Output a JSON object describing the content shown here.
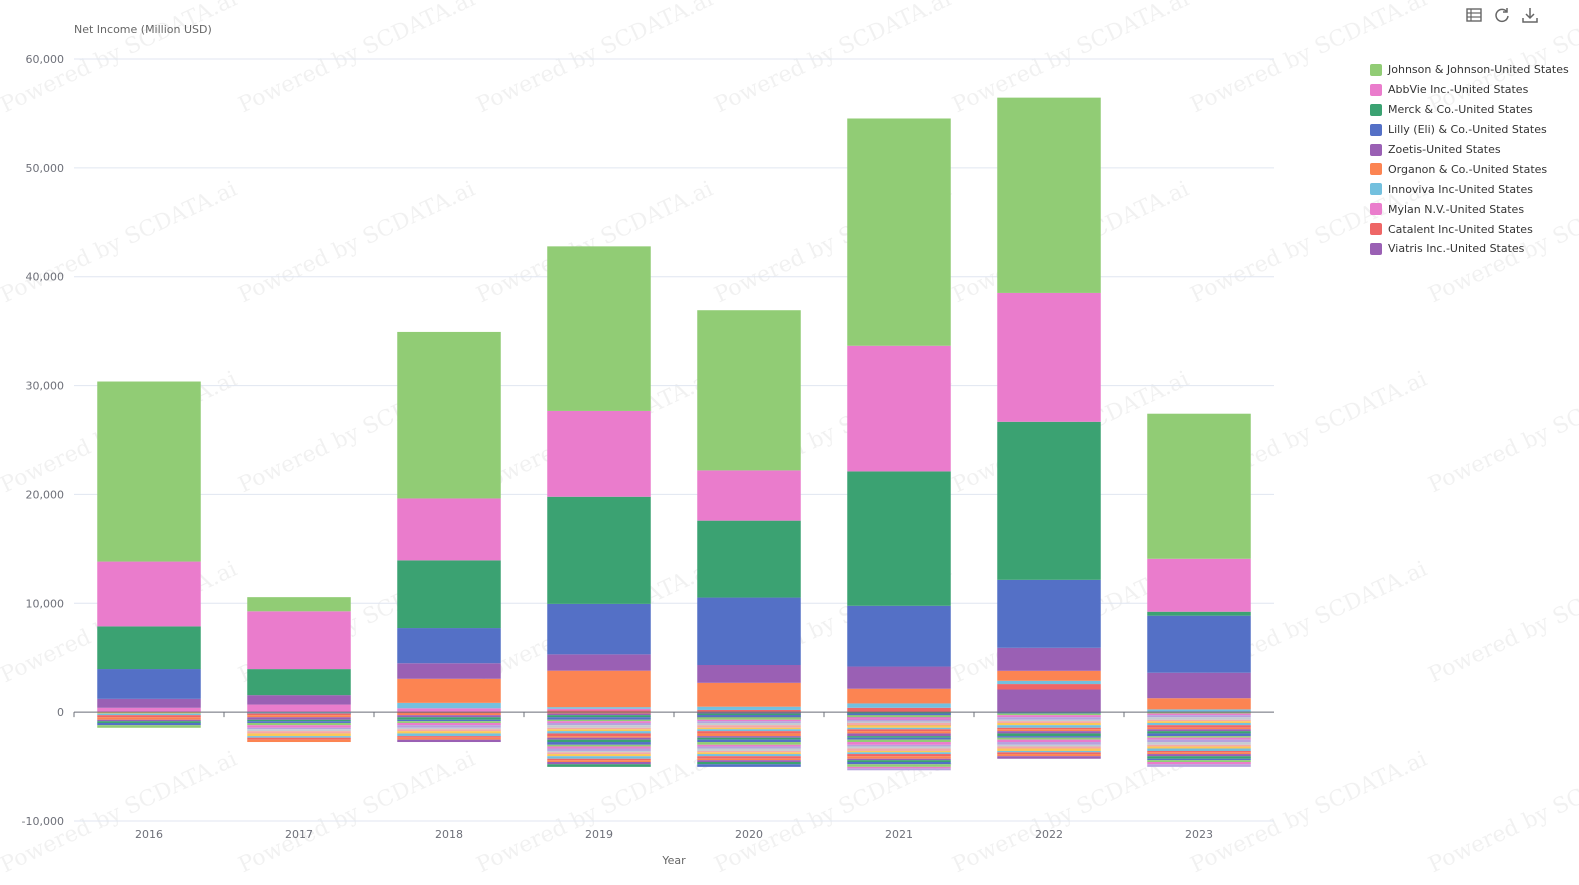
{
  "toolbar": {
    "icons": [
      "table-icon",
      "refresh-icon",
      "download-icon"
    ]
  },
  "watermark": "Powered by SCDATA.ai",
  "chart_data": {
    "type": "bar",
    "stacked": true,
    "ylabel": "Net Income (Million USD)",
    "xlabel": "Year",
    "categories": [
      "2016",
      "2017",
      "2018",
      "2019",
      "2020",
      "2021",
      "2022",
      "2023"
    ],
    "ylim": [
      -10000,
      60000
    ],
    "yticks": [
      "60,000",
      "50,000",
      "40,000",
      "30,000",
      "20,000",
      "10,000",
      "0",
      "-10,000"
    ],
    "ytick_values": [
      60000,
      50000,
      40000,
      30000,
      20000,
      10000,
      0,
      -10000
    ],
    "grid": true,
    "legend_position": "right",
    "series": [
      {
        "name": "Johnson & Johnson-United States",
        "color": "#91cc75",
        "values": [
          16540,
          1300,
          15297,
          15119,
          14714,
          20878,
          17941,
          13326
        ]
      },
      {
        "name": "AbbVie Inc.-United States",
        "color": "#ea7ccc",
        "values": [
          5953,
          5309,
          5687,
          7882,
          4616,
          11542,
          11836,
          4863
        ]
      },
      {
        "name": "Merck & Co.-United States",
        "color": "#3ba272",
        "values": [
          3920,
          2394,
          6220,
          9843,
          7067,
          12345,
          14519,
          365
        ]
      },
      {
        "name": "Lilly (Eli) & Co.-United States",
        "color": "#5470c6",
        "values": [
          2738,
          -204,
          3232,
          4637,
          6194,
          5582,
          6245,
          5240
        ]
      },
      {
        "name": "Zoetis-United States",
        "color": "#9a60b4",
        "values": [
          821,
          864,
          1428,
          1500,
          1638,
          2037,
          2114,
          2344
        ]
      },
      {
        "name": "Organon & Co.-United States",
        "color": "#fc8452",
        "values": [
          0,
          0,
          2211,
          3348,
          2193,
          1351,
          917,
          1023
        ]
      },
      {
        "name": "Innoviva Inc-United States",
        "color": "#73c0de",
        "values": [
          0,
          0,
          500,
          150,
          300,
          400,
          300,
          200
        ]
      },
      {
        "name": "Mylan N.V.-United States",
        "color": "#ea7ccc",
        "values": [
          400,
          696,
          353,
          160,
          0,
          0,
          0,
          0
        ]
      },
      {
        "name": "Catalent Inc-United States",
        "color": "#ee6666",
        "values": [
          0,
          0,
          0,
          150,
          200,
          400,
          500,
          0
        ]
      },
      {
        "name": "Viatris Inc.-United States",
        "color": "#9a60b4",
        "values": [
          0,
          0,
          0,
          0,
          -670,
          -1269,
          2079,
          54
        ]
      }
    ]
  }
}
